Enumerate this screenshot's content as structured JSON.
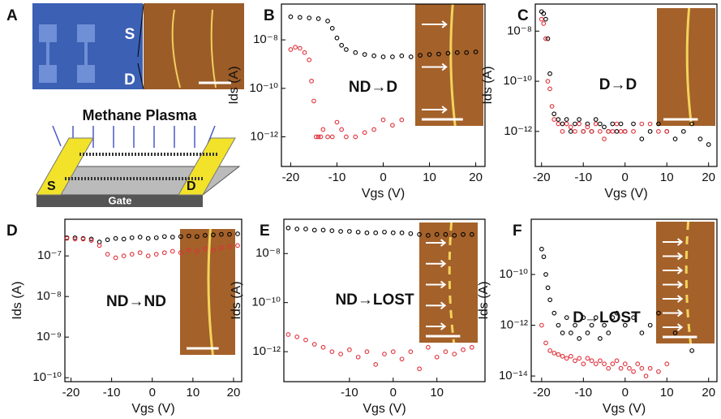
{
  "panel_a": {
    "label": "A",
    "sem_labels": [
      "S",
      "D"
    ],
    "title": "Methane Plasma",
    "device_labels": [
      "S",
      "D",
      "Gate"
    ]
  },
  "chart_data": [
    {
      "type": "scatter",
      "label": "B",
      "annotation": "ND→D",
      "xlabel": "Vgs (V)",
      "ylabel": "Ids (A)",
      "log_y": true,
      "xlim": [
        -22,
        22
      ],
      "ylim": [
        6e-14,
        3e-07
      ],
      "xticks": [
        -20,
        -10,
        0,
        10,
        20
      ],
      "yticks": [
        {
          "value": 1e-08,
          "label": "10⁻⁸"
        },
        {
          "value": 1e-10,
          "label": "10⁻¹⁰"
        },
        {
          "value": 1e-12,
          "label": "10⁻¹²"
        }
      ],
      "series": [
        {
          "color": "#000000",
          "x": [
            -20,
            -18,
            -16,
            -14,
            -12,
            -11,
            -10,
            -9,
            -8,
            -6,
            -4,
            -2,
            0,
            2,
            4,
            6,
            8,
            10,
            12,
            14,
            16,
            18,
            20
          ],
          "values": [
            9e-08,
            8.5e-08,
            8e-08,
            7.5e-08,
            6e-08,
            3e-08,
            1.2e-08,
            6e-09,
            4e-09,
            3e-09,
            2.5e-09,
            2.2e-09,
            2e-09,
            2e-09,
            2.2e-09,
            2e-09,
            2.3e-09,
            2.5e-09,
            2.6e-09,
            2.8e-09,
            3e-09,
            3e-09,
            3.2e-09
          ]
        },
        {
          "color": "#e0303a",
          "x": [
            -20,
            -19,
            -18,
            -17,
            -16,
            -15.5,
            -15,
            -14.5,
            -14,
            -13.5,
            -13,
            -12,
            -11,
            -10,
            -9,
            -8,
            -6,
            -4,
            -2,
            0,
            2,
            4
          ],
          "values": [
            4e-09,
            5e-09,
            4.5e-09,
            3e-09,
            1.5e-09,
            2e-10,
            3e-11,
            1e-12,
            1e-12,
            1e-12,
            2e-12,
            1e-12,
            1e-12,
            4e-12,
            2e-12,
            1e-12,
            1e-12,
            1.5e-12,
            2e-12,
            5e-12,
            3e-12,
            5e-12
          ]
        }
      ]
    },
    {
      "type": "scatter",
      "label": "C",
      "annotation": "D→D",
      "xlabel": "Vgs (V)",
      "ylabel": "Ids (A)",
      "log_y": true,
      "xlim": [
        -21.5,
        22
      ],
      "ylim": [
        4e-14,
        1.2e-07
      ],
      "xticks": [
        -20,
        -10,
        0,
        10,
        20
      ],
      "yticks": [
        {
          "value": 1e-08,
          "label": "10⁻⁸"
        },
        {
          "value": 1e-10,
          "label": "10⁻¹⁰"
        },
        {
          "value": 1e-12,
          "label": "10⁻¹²"
        }
      ],
      "series": [
        {
          "color": "#000000",
          "x": [
            -20,
            -19.5,
            -19,
            -18.5,
            -18,
            -17,
            -16,
            -15,
            -14,
            -13,
            -12,
            -11,
            -10,
            -9,
            -8,
            -7,
            -6,
            -5,
            -4,
            -3,
            -2,
            -1,
            0,
            2,
            4,
            6,
            8,
            10,
            12,
            14,
            16,
            18,
            20
          ],
          "values": [
            6e-08,
            5e-08,
            3e-08,
            5e-09,
            2e-10,
            5e-12,
            3e-12,
            2e-12,
            3e-12,
            1e-12,
            2e-12,
            3e-12,
            1e-12,
            2e-12,
            1e-12,
            3e-12,
            2e-12,
            1.5e-12,
            1e-12,
            2e-12,
            1e-12,
            2e-12,
            1e-12,
            2e-12,
            5e-13,
            1e-12,
            2e-12,
            1e-12,
            5e-13,
            1e-12,
            2e-12,
            5e-13,
            3e-13
          ]
        },
        {
          "color": "#e0303a",
          "x": [
            -20,
            -19.5,
            -19,
            -18.5,
            -18,
            -17.5,
            -17,
            -16,
            -15,
            -14,
            -13,
            -12,
            -11,
            -10,
            -9,
            -8,
            -7,
            -6,
            -5,
            -4,
            -3,
            -2,
            -1,
            0,
            2,
            4,
            6,
            8,
            10
          ],
          "values": [
            3e-08,
            2e-08,
            5e-09,
            1e-10,
            5e-11,
            1e-11,
            3e-12,
            2e-12,
            1e-12,
            2e-12,
            1.5e-12,
            1e-12,
            2e-12,
            1e-12,
            1.5e-12,
            1e-12,
            2e-12,
            1e-12,
            5e-13,
            1e-12,
            1e-12,
            2e-12,
            1e-12,
            1e-12,
            1e-12,
            2e-12,
            2e-12,
            1e-12,
            1e-12
          ]
        }
      ]
    },
    {
      "type": "scatter",
      "label": "D",
      "annotation": "ND→ND",
      "xlabel": "Vgs (V)",
      "ylabel": "Ids (A)",
      "log_y": true,
      "xlim": [
        -21.5,
        22
      ],
      "ylim": [
        8e-11,
        8e-07
      ],
      "xticks": [
        -20,
        -10,
        0,
        10,
        20
      ],
      "yticks": [
        {
          "value": 1e-07,
          "label": "10⁻⁷"
        },
        {
          "value": 1e-08,
          "label": "10⁻⁸"
        },
        {
          "value": 1e-09,
          "label": "10⁻⁹"
        },
        {
          "value": 1e-10,
          "label": "10⁻¹⁰"
        }
      ],
      "series": [
        {
          "color": "#000000",
          "x": [
            -21,
            -19,
            -17,
            -15,
            -13,
            -11,
            -9,
            -7,
            -5,
            -3,
            -1,
            1,
            3,
            5,
            7,
            9,
            11,
            13,
            15,
            17,
            19,
            21
          ],
          "values": [
            2.8e-07,
            2.8e-07,
            2.7e-07,
            2.6e-07,
            2.2e-07,
            2.5e-07,
            2.7e-07,
            2.6e-07,
            2.8e-07,
            2.9e-07,
            2.7e-07,
            2.8e-07,
            3e-07,
            2.9e-07,
            3e-07,
            3.1e-07,
            3e-07,
            3.2e-07,
            3.3e-07,
            3.4e-07,
            3.4e-07,
            3.5e-07
          ]
        },
        {
          "color": "#e0303a",
          "x": [
            -21,
            -19,
            -17,
            -15,
            -13,
            -11,
            -9,
            -7,
            -5,
            -3,
            -1,
            1,
            3,
            5,
            7,
            9,
            11,
            13,
            15,
            17,
            19,
            21
          ],
          "values": [
            2.7e-07,
            2.6e-07,
            2.6e-07,
            2.4e-07,
            1.8e-07,
            1.1e-07,
            9e-08,
            1e-07,
            1.1e-07,
            1.2e-07,
            1e-07,
            1.1e-07,
            1.2e-07,
            1.3e-07,
            1.2e-07,
            1.4e-07,
            1.3e-07,
            1.5e-07,
            1.4e-07,
            1.6e-07,
            1.7e-07,
            1.8e-07
          ]
        }
      ]
    },
    {
      "type": "scatter",
      "label": "E",
      "annotation": "ND→LOST",
      "xlabel": "Vgs (V)",
      "ylabel": "Ids (A)",
      "log_y": true,
      "xlim": [
        -25,
        21
      ],
      "ylim": [
        6e-14,
        2.5e-07
      ],
      "xticks": [
        -10,
        0,
        10
      ],
      "yticks": [
        {
          "value": 1e-08,
          "label": "10⁻⁸"
        },
        {
          "value": 1e-10,
          "label": "10⁻¹⁰"
        },
        {
          "value": 1e-12,
          "label": "10⁻¹²"
        }
      ],
      "series": [
        {
          "color": "#000000",
          "x": [
            -24,
            -22,
            -20,
            -18,
            -16,
            -14,
            -12,
            -10,
            -8,
            -6,
            -4,
            -2,
            0,
            2,
            4,
            6,
            8,
            10,
            12,
            14,
            16,
            18
          ],
          "values": [
            1.1e-07,
            1e-07,
            1e-07,
            9e-08,
            9e-08,
            8.5e-08,
            8e-08,
            8e-08,
            7.5e-08,
            7e-08,
            7e-08,
            7.5e-08,
            7e-08,
            7e-08,
            6.5e-08,
            6e-08,
            5.5e-08,
            6e-08,
            6e-08,
            5.5e-08,
            6e-08,
            6e-08
          ]
        },
        {
          "color": "#e0303a",
          "x": [
            -24,
            -22,
            -20,
            -18,
            -16,
            -14,
            -12,
            -10,
            -8,
            -6,
            -4,
            -2,
            0,
            2,
            4,
            6,
            8,
            10,
            12,
            14,
            16,
            18
          ],
          "values": [
            5e-12,
            4e-12,
            3e-12,
            2e-12,
            1.5e-12,
            1e-12,
            8e-13,
            1.2e-12,
            6e-13,
            1e-12,
            3e-13,
            8e-13,
            1e-12,
            5e-13,
            1e-12,
            2e-13,
            1.5e-12,
            6e-13,
            1e-12,
            8e-13,
            1.2e-12,
            1.5e-12
          ]
        }
      ]
    },
    {
      "type": "scatter",
      "label": "F",
      "annotation": "D→LOST",
      "xlabel": "Vgs (V)",
      "ylabel": "Ids (A)",
      "log_y": true,
      "xlim": [
        -22.5,
        22
      ],
      "ylim": [
        6e-15,
        1.5e-08
      ],
      "xticks": [
        -20,
        -10,
        0,
        10,
        20
      ],
      "yticks": [
        {
          "value": 1e-10,
          "label": "10⁻¹⁰"
        },
        {
          "value": 1e-12,
          "label": "10⁻¹²"
        },
        {
          "value": 1e-14,
          "label": "10⁻¹⁴"
        }
      ],
      "series": [
        {
          "color": "#000000",
          "x": [
            -20,
            -19.5,
            -19,
            -18.5,
            -18,
            -17,
            -16,
            -15,
            -14,
            -13,
            -12,
            -11,
            -10,
            -9,
            -8,
            -7,
            -6,
            -5,
            -4,
            -3,
            -2,
            0,
            2,
            4,
            6,
            8,
            12,
            16
          ],
          "values": [
            1e-09,
            5e-10,
            1e-10,
            3e-11,
            1e-11,
            3e-12,
            1e-12,
            5e-13,
            2e-12,
            5e-13,
            1e-12,
            3e-13,
            2e-12,
            5e-13,
            1e-12,
            2e-12,
            3e-13,
            1e-12,
            5e-13,
            2e-12,
            3e-12,
            1e-12,
            2e-12,
            5e-13,
            1e-12,
            3e-12,
            5e-13,
            1e-13
          ]
        },
        {
          "color": "#e0303a",
          "x": [
            -20,
            -19,
            -18,
            -17,
            -16,
            -15,
            -14,
            -13,
            -12,
            -11,
            -10,
            -9,
            -8,
            -7,
            -6,
            -5,
            -4,
            -3,
            -2,
            -1,
            0,
            1,
            2,
            3,
            4,
            5,
            6,
            8,
            10
          ],
          "values": [
            1e-12,
            2e-13,
            1e-13,
            8e-14,
            7e-14,
            6e-14,
            5e-14,
            6e-14,
            4e-14,
            5e-14,
            3e-14,
            5e-14,
            4e-14,
            3e-14,
            4e-14,
            3e-14,
            2e-14,
            3e-14,
            4e-14,
            2e-14,
            3e-14,
            2e-14,
            1.5e-14,
            3e-14,
            2e-14,
            1e-14,
            2e-14,
            1.5e-14,
            3e-14
          ]
        }
      ]
    }
  ]
}
